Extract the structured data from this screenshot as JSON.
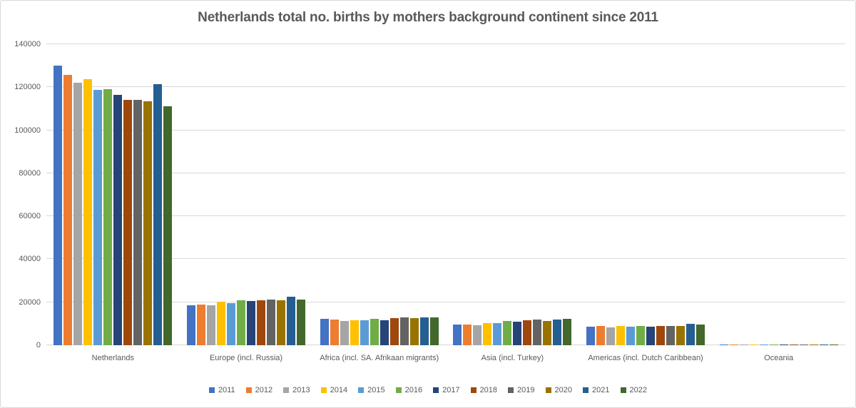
{
  "chart_data": {
    "type": "bar",
    "title": "Netherlands total no. births by mothers background continent since 2011",
    "categories": [
      "Netherlands",
      "Europe (incl. Russia)",
      "Africa (incl. SA. Afrikaan migrants)",
      "Asia (incl. Turkey)",
      "Americas (incl. Dutch Caribbean)",
      "Oceania"
    ],
    "series": [
      {
        "name": "2011",
        "color": "#4472C4",
        "values": [
          129900,
          18700,
          12200,
          9800,
          8700,
          400
        ]
      },
      {
        "name": "2012",
        "color": "#ED7D31",
        "values": [
          125600,
          19000,
          12100,
          9800,
          8900,
          400
        ]
      },
      {
        "name": "2013",
        "color": "#A5A5A5",
        "values": [
          122000,
          18600,
          11400,
          9200,
          8400,
          400
        ]
      },
      {
        "name": "2014",
        "color": "#FFC000",
        "values": [
          123600,
          20100,
          11700,
          10200,
          8900,
          450
        ]
      },
      {
        "name": "2015",
        "color": "#5B9BD5",
        "values": [
          118700,
          19600,
          11700,
          10200,
          8700,
          450
        ]
      },
      {
        "name": "2016",
        "color": "#70AD47",
        "values": [
          119200,
          20800,
          12300,
          11300,
          8900,
          450
        ]
      },
      {
        "name": "2017",
        "color": "#264478",
        "values": [
          116400,
          20500,
          11500,
          11100,
          8700,
          450
        ]
      },
      {
        "name": "2018",
        "color": "#9E480E",
        "values": [
          114200,
          21000,
          12600,
          11700,
          8900,
          450
        ]
      },
      {
        "name": "2019",
        "color": "#636363",
        "values": [
          114000,
          21200,
          13100,
          12000,
          8900,
          500
        ]
      },
      {
        "name": "2020",
        "color": "#997300",
        "values": [
          113400,
          21000,
          12700,
          11400,
          9100,
          500
        ]
      },
      {
        "name": "2021",
        "color": "#255E91",
        "values": [
          121400,
          22700,
          13100,
          12000,
          10100,
          500
        ]
      },
      {
        "name": "2022",
        "color": "#43682B",
        "values": [
          111000,
          21200,
          12800,
          12400,
          9500,
          500
        ]
      }
    ],
    "ylim": [
      0,
      140000
    ],
    "ytick_step": 20000,
    "yticks": [
      "0",
      "20000",
      "40000",
      "60000",
      "80000",
      "100000",
      "120000",
      "140000"
    ],
    "xlabel": "",
    "ylabel": "",
    "grid": true,
    "legend_position": "bottom",
    "grid_color": "#D9D9D9",
    "text_color": "#595959",
    "background_color": "#FFFFFF"
  }
}
